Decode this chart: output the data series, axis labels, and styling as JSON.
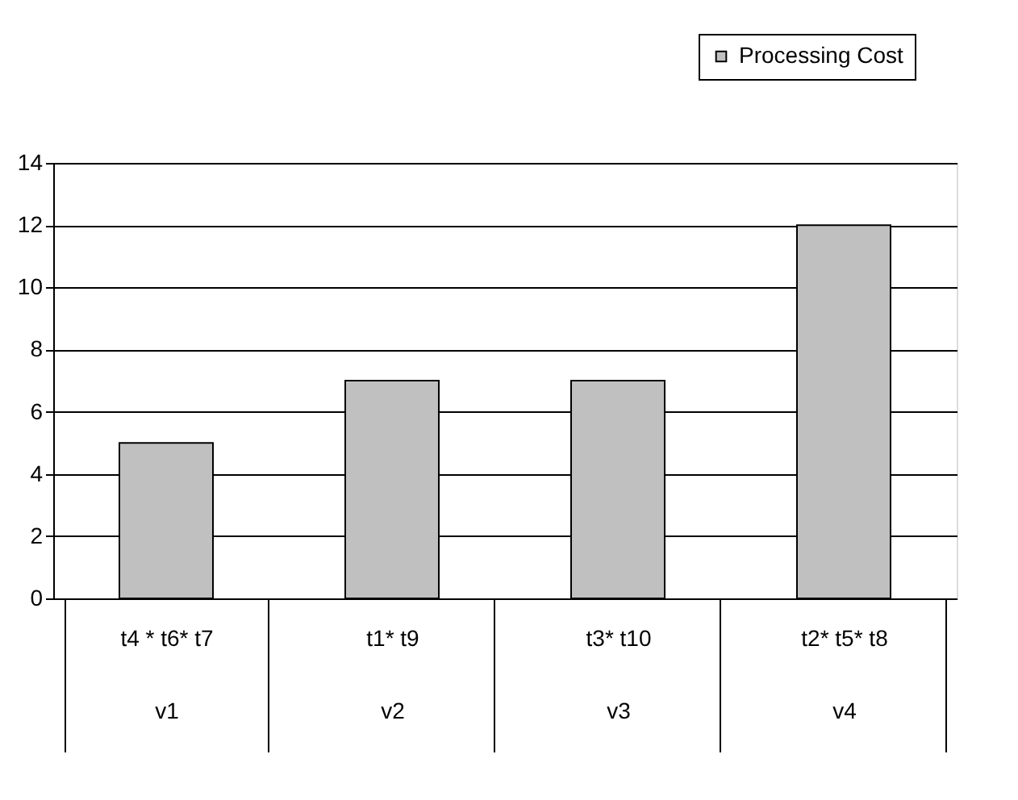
{
  "chart_data": {
    "type": "bar",
    "categories": [
      "t4 * t6* t7\nv1",
      "t1* t9\nv2",
      "t3* t10\nv3",
      "t2* t5* t8\nv4"
    ],
    "series": [
      {
        "name": "Processing Cost",
        "color": "#c0c0c0",
        "values": [
          5,
          7,
          7,
          12
        ]
      }
    ],
    "ylim": [
      0,
      14
    ],
    "yticks": [
      0,
      2,
      4,
      6,
      8,
      10,
      12,
      14
    ],
    "grid": "y",
    "legend": "top right"
  }
}
